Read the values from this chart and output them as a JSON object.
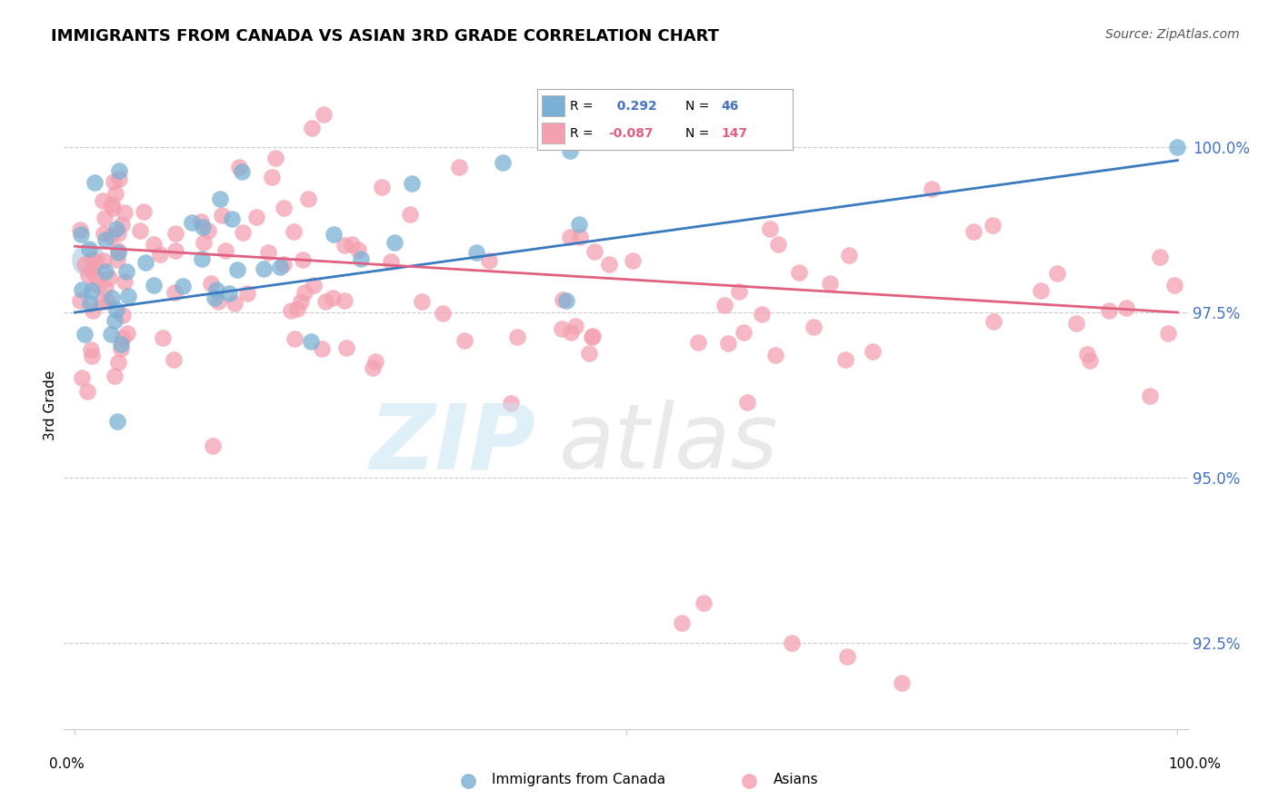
{
  "title": "IMMIGRANTS FROM CANADA VS ASIAN 3RD GRADE CORRELATION CHART",
  "source": "Source: ZipAtlas.com",
  "ylabel": "3rd Grade",
  "legend_label_blue": "Immigrants from Canada",
  "legend_label_pink": "Asians",
  "R_blue": 0.292,
  "N_blue": 46,
  "R_pink": -0.087,
  "N_pink": 147,
  "yticks": [
    92.5,
    95.0,
    97.5,
    100.0
  ],
  "ymin": 91.2,
  "ymax": 101.0,
  "xmin": -1.0,
  "xmax": 101.0,
  "color_blue": "#7ab0d4",
  "color_pink": "#f4a0b0",
  "line_color_blue": "#3a7abf",
  "line_color_pink": "#e06080",
  "background_color": "#ffffff",
  "title_fontsize": 13,
  "blue_trend_x0": 0,
  "blue_trend_y0": 97.5,
  "blue_trend_x1": 100,
  "blue_trend_y1": 99.8,
  "pink_trend_x0": 0,
  "pink_trend_y0": 98.5,
  "pink_trend_x1": 100,
  "pink_trend_y1": 97.5
}
